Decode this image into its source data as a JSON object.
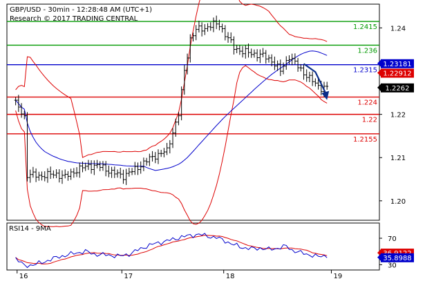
{
  "header": {
    "title": "GBP/USD - 30min - 12:28:48 AM (UTC+1)",
    "subtitle": "Research © 2017 TRADING CENTRAL"
  },
  "rsi_title": "RSI14 - 9MA",
  "chart_data": [
    {
      "type": "candlestick",
      "y_ticks": [
        1.2,
        1.21,
        1.22,
        1.23,
        1.24
      ],
      "y_tick_labels": [
        "1.20",
        "1.21",
        "1.22",
        "1.23",
        "1.24"
      ],
      "ylim": [
        1.1955,
        1.2455
      ],
      "x_ticks": [
        {
          "label": "16",
          "x": 0.5
        },
        {
          "label": "17",
          "x": 36.5
        },
        {
          "label": "18",
          "x": 71.5
        },
        {
          "label": "19",
          "x": 108.5
        }
      ],
      "xlim": [
        -3,
        125
      ],
      "last_bar": 107,
      "price_key": [
        [
          0,
          1.2225
        ],
        [
          3,
          1.2195
        ],
        [
          4,
          1.206
        ],
        [
          8,
          1.2058
        ],
        [
          14,
          1.2062
        ],
        [
          17,
          1.2055
        ],
        [
          20,
          1.2068
        ],
        [
          25,
          1.2082
        ],
        [
          30,
          1.2078
        ],
        [
          33,
          1.2065
        ],
        [
          37,
          1.2058
        ],
        [
          40,
          1.2068
        ],
        [
          44,
          1.2088
        ],
        [
          48,
          1.2105
        ],
        [
          52,
          1.2115
        ],
        [
          54,
          1.216
        ],
        [
          56,
          1.22
        ],
        [
          58,
          1.23
        ],
        [
          60,
          1.2375
        ],
        [
          62,
          1.2395
        ],
        [
          65,
          1.24
        ],
        [
          68,
          1.2408
        ],
        [
          70,
          1.2408
        ],
        [
          72,
          1.2385
        ],
        [
          75,
          1.2355
        ],
        [
          78,
          1.2345
        ],
        [
          82,
          1.234
        ],
        [
          85,
          1.2335
        ],
        [
          88,
          1.2325
        ],
        [
          91,
          1.23
        ],
        [
          94,
          1.2335
        ],
        [
          97,
          1.231
        ],
        [
          100,
          1.229
        ],
        [
          103,
          1.227
        ],
        [
          105,
          1.2262
        ],
        [
          107,
          1.2262
        ]
      ],
      "levels": [
        {
          "label": "1.2415",
          "value": 1.2415,
          "color": "#009900"
        },
        {
          "label": "1.236",
          "value": 1.236,
          "color": "#009900"
        },
        {
          "label": "1.2315",
          "value": 1.2315,
          "color": "#0000cc"
        },
        {
          "label": "1.224",
          "value": 1.224,
          "color": "#dd0000"
        },
        {
          "label": "1.22",
          "value": 1.22,
          "color": "#dd0000"
        },
        {
          "label": "1.2155",
          "value": 1.2155,
          "color": "#dd0000"
        }
      ],
      "price_boxes": [
        {
          "label": "1.23181",
          "value": 1.2318,
          "bg": "#0000cc",
          "color": "#ffffff"
        },
        {
          "label": "1.22912",
          "value": 1.2296,
          "bg": "#dd0000",
          "color": "#ffffff"
        },
        {
          "label": "1.2262",
          "value": 1.2262,
          "bg": "#000000",
          "color": "#ffffff"
        }
      ],
      "arrow": {
        "from": [
          99,
          1.2317
        ],
        "via": [
          103,
          1.2298
        ],
        "to": [
          107,
          1.2243
        ],
        "color": "#0b2e8a"
      },
      "colors": {
        "bars": "#000000",
        "bollinger": "#dd0000",
        "moving_average": "#0000cc"
      }
    },
    {
      "type": "line",
      "name": "RSI14 - 9MA",
      "y_ticks": [
        30,
        50,
        70
      ],
      "y_tick_labels": [
        "30",
        "50",
        "70"
      ],
      "ylim": [
        22,
        93
      ],
      "rsi_key": [
        [
          0,
          40
        ],
        [
          3,
          28
        ],
        [
          6,
          30
        ],
        [
          9,
          33
        ],
        [
          12,
          38
        ],
        [
          15,
          42
        ],
        [
          18,
          45
        ],
        [
          21,
          48
        ],
        [
          24,
          50
        ],
        [
          27,
          46
        ],
        [
          30,
          45
        ],
        [
          33,
          44
        ],
        [
          36,
          43
        ],
        [
          39,
          46
        ],
        [
          42,
          52
        ],
        [
          45,
          58
        ],
        [
          48,
          62
        ],
        [
          51,
          65
        ],
        [
          54,
          68
        ],
        [
          57,
          72
        ],
        [
          60,
          74
        ],
        [
          63,
          76
        ],
        [
          66,
          73
        ],
        [
          69,
          71
        ],
        [
          72,
          66
        ],
        [
          75,
          60
        ],
        [
          78,
          56
        ],
        [
          81,
          54
        ],
        [
          84,
          55
        ],
        [
          87,
          53
        ],
        [
          90,
          55
        ],
        [
          93,
          58
        ],
        [
          95,
          52
        ],
        [
          98,
          48
        ],
        [
          101,
          45
        ],
        [
          104,
          42
        ],
        [
          107,
          44
        ]
      ],
      "boxes": [
        {
          "label": "36.9122",
          "value": 48,
          "bg": "#dd0000",
          "color": "#ffffff"
        },
        {
          "label": "35.8988",
          "value": 41,
          "bg": "#0000cc",
          "color": "#ffffff"
        }
      ],
      "colors": {
        "rsi": "#0000cc",
        "ma": "#dd0000"
      }
    }
  ]
}
